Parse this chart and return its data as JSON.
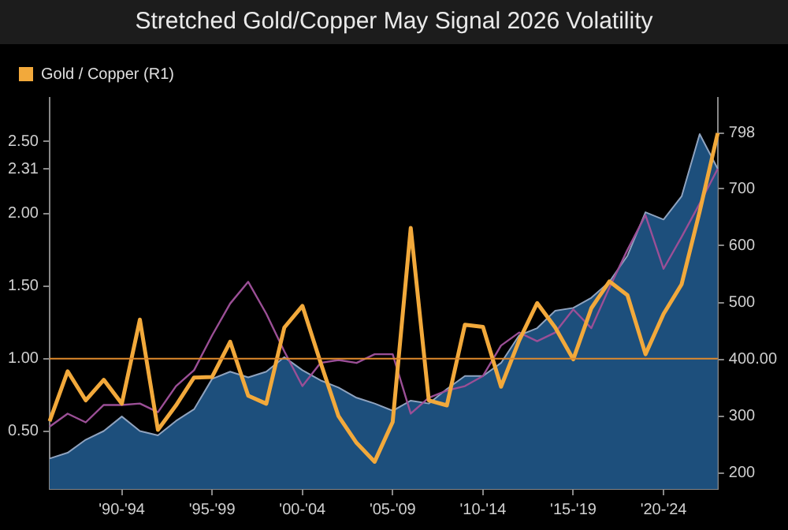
{
  "chart_data": {
    "type": "line",
    "title": "Stretched Gold/Copper May Signal 2026 Volatility",
    "categories": [
      null,
      null,
      null,
      null,
      "'90-'94",
      null,
      null,
      null,
      null,
      "'95-'99",
      null,
      null,
      null,
      null,
      "'00-'04",
      null,
      null,
      null,
      null,
      "'05-'09",
      null,
      null,
      null,
      null,
      "'10-'14",
      null,
      null,
      null,
      null,
      "'15-'19",
      null,
      null,
      null,
      null,
      "'20-'24",
      null,
      null,
      null
    ],
    "series": [
      {
        "type": "area",
        "color": "#1d4f7c",
        "values": [
          0.31,
          0.35,
          0.44,
          0.5,
          0.6,
          0.5,
          0.47,
          0.57,
          0.65,
          0.86,
          0.91,
          0.87,
          0.91,
          1.01,
          0.92,
          0.85,
          0.8,
          0.73,
          0.69,
          0.64,
          0.71,
          0.69,
          0.79,
          0.88,
          0.88,
          0.97,
          1.16,
          1.21,
          1.33,
          1.35,
          1.42,
          1.53,
          1.71,
          2.01,
          1.96,
          2.12,
          2.55,
          2.31
        ]
      },
      {
        "color": "#9b4f96",
        "values": [
          0.53,
          0.62,
          0.56,
          0.68,
          0.68,
          0.69,
          0.63,
          0.81,
          0.92,
          1.16,
          1.38,
          1.53,
          1.31,
          1.05,
          0.81,
          0.97,
          0.99,
          0.97,
          1.03,
          1.03,
          0.62,
          0.73,
          0.78,
          0.81,
          0.88,
          1.09,
          1.18,
          1.12,
          1.18,
          1.34,
          1.21,
          1.49,
          1.75,
          1.99,
          1.62,
          1.84,
          2.07,
          2.31
        ]
      },
      {
        "name": "Gold / Copper (R1)",
        "color": "#f2a93b",
        "axis": "y2",
        "values": [
          291,
          379,
          328,
          364,
          322,
          470,
          276,
          319,
          368,
          369,
          431,
          336,
          322,
          456,
          494,
          395,
          300,
          253,
          220,
          290,
          631,
          328,
          319,
          461,
          457,
          352,
          433,
          499,
          456,
          400,
          490,
          537,
          513,
          409,
          480,
          532,
          660,
          798
        ]
      }
    ],
    "ylim": [
      0.1,
      2.8
    ],
    "yticks": [
      {
        "value": 0.5,
        "label": "0.50"
      },
      {
        "value": 1,
        "label": "1.00"
      },
      {
        "value": 1.5,
        "label": "1.50"
      },
      {
        "value": 2,
        "label": "2.00"
      },
      {
        "value": 2.31,
        "label": "2.31"
      },
      {
        "value": 2.5,
        "label": "2.50"
      }
    ],
    "y2lim": [
      172,
      860
    ],
    "y2ticks": [
      200,
      300,
      {
        "value": 400,
        "label": "400.00"
      },
      500,
      600,
      700,
      798
    ],
    "ref_lines": [
      {
        "axis": "y",
        "value": 1,
        "color": "#e08a2c"
      }
    ],
    "grid": false,
    "legend": "top left"
  }
}
